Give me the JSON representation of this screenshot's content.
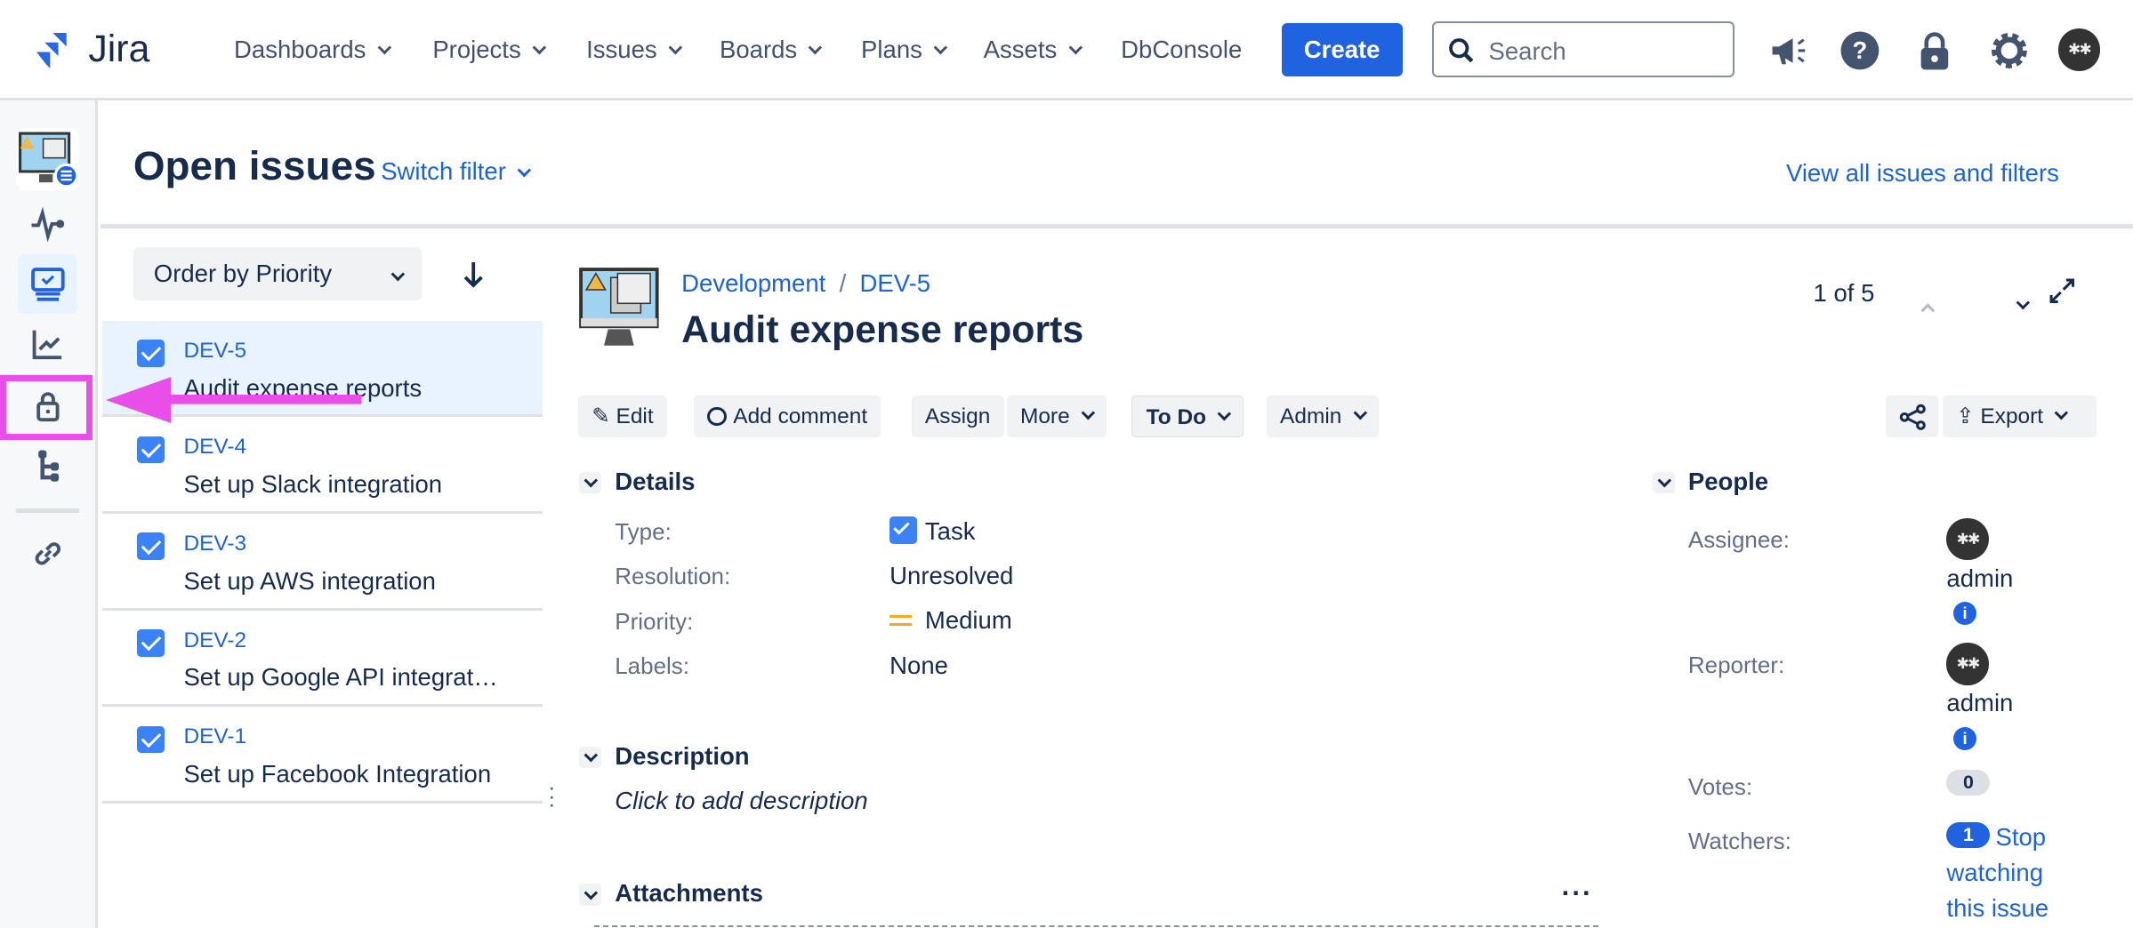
{
  "topnav": {
    "logo": "Jira",
    "items": [
      "Dashboards",
      "Projects",
      "Issues",
      "Boards",
      "Plans",
      "Assets",
      "DbConsole"
    ],
    "create_label": "Create",
    "search_placeholder": "Search"
  },
  "page": {
    "title": "Open issues",
    "switch_filter": "Switch filter",
    "view_all": "View all issues and filters"
  },
  "list": {
    "order_label": "Order by Priority",
    "issues": [
      {
        "key": "DEV-5",
        "summary": "Audit expense reports"
      },
      {
        "key": "DEV-4",
        "summary": "Set up Slack integration"
      },
      {
        "key": "DEV-3",
        "summary": "Set up AWS integration"
      },
      {
        "key": "DEV-2",
        "summary": "Set up Google API integration"
      },
      {
        "key": "DEV-1",
        "summary": "Set up Facebook Integration"
      }
    ]
  },
  "issue": {
    "project": "Development",
    "key": "DEV-5",
    "title": "Audit expense reports",
    "pager": "1 of 5",
    "toolbar": {
      "edit": "Edit",
      "comment": "Add comment",
      "assign": "Assign",
      "more": "More",
      "status": "To Do",
      "admin": "Admin",
      "export": "Export"
    },
    "details": {
      "heading": "Details",
      "rows": [
        {
          "label": "Type:",
          "value": "Task"
        },
        {
          "label": "Resolution:",
          "value": "Unresolved"
        },
        {
          "label": "Priority:",
          "value": "Medium"
        },
        {
          "label": "Labels:",
          "value": "None"
        }
      ]
    },
    "description": {
      "heading": "Description",
      "placeholder": "Click to add description"
    },
    "attachments": {
      "heading": "Attachments"
    },
    "people": {
      "heading": "People",
      "assignee_label": "Assignee:",
      "assignee": "admin",
      "reporter_label": "Reporter:",
      "reporter": "admin",
      "votes_label": "Votes:",
      "votes": "0",
      "watchers_label": "Watchers:",
      "watchers": "1",
      "watch_link": "Stop watching this issue"
    }
  },
  "colors": {
    "brand": "#1f63e0",
    "annotation": "#e94ee9",
    "selected_row": "#e9f2ff",
    "priority_medium": "#f5a623"
  }
}
